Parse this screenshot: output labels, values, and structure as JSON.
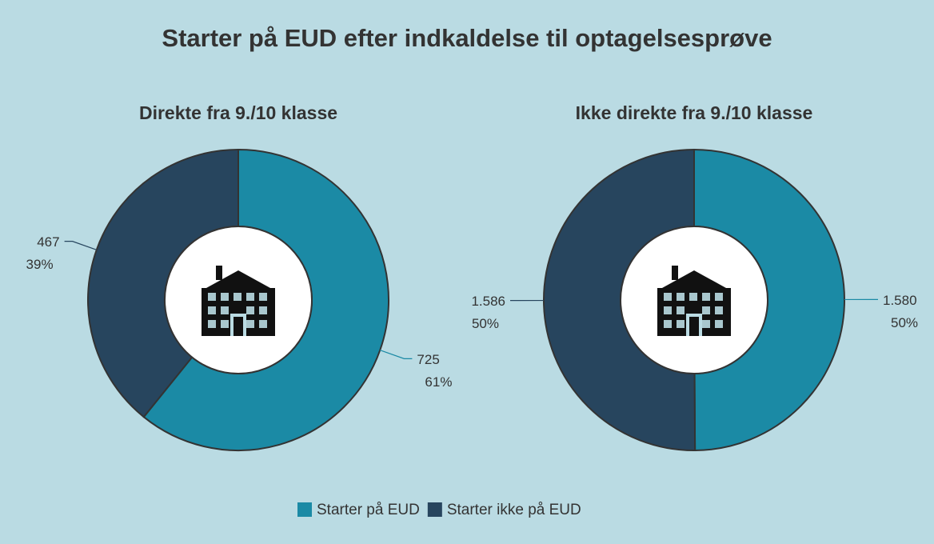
{
  "title": "Starter på EUD efter indkaldelse til optagelsesprøve",
  "chart_data": [
    {
      "type": "pie",
      "title": "Direkte fra 9./10 klasse",
      "categories": [
        "Starter på EUD",
        "Starter ikke på EUD"
      ],
      "values": [
        725,
        467
      ],
      "percents": [
        {
          "value": 61,
          "label": "61%"
        },
        {
          "value": 39,
          "label": "39%"
        }
      ],
      "colors": [
        "#1b8aa5",
        "#27455e"
      ],
      "donut": true
    },
    {
      "type": "pie",
      "title": "Ikke direkte fra 9./10 klasse",
      "categories": [
        "Starter på EUD",
        "Starter ikke på EUD"
      ],
      "values": [
        1580,
        1586
      ],
      "value_labels": [
        "1.580",
        "1.586"
      ],
      "percents": [
        {
          "value": 50,
          "label": "50%"
        },
        {
          "value": 50,
          "label": "50%"
        }
      ],
      "colors": [
        "#1b8aa5",
        "#27455e"
      ],
      "donut": true
    }
  ]
}
